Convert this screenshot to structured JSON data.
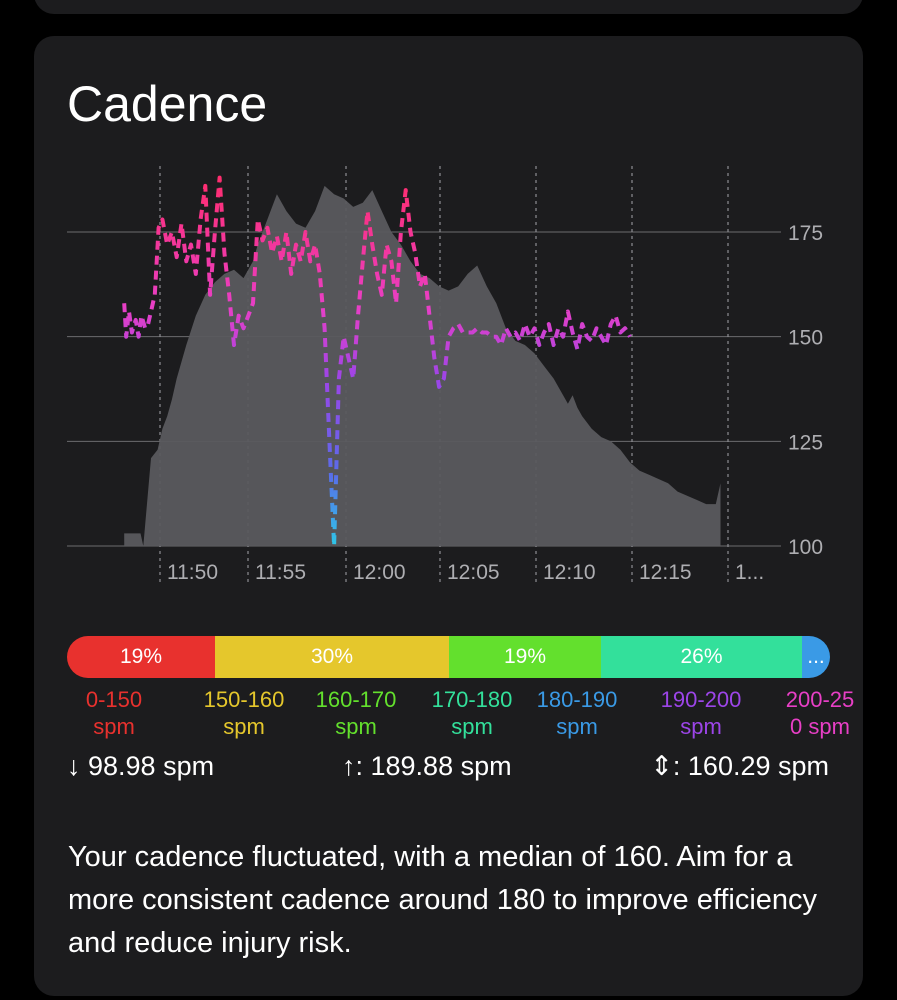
{
  "card": {
    "title": "Cadence",
    "summary": "Your cadence fluctuated, with a median of 160. Aim for a more consistent cadence around 180 to improve efficiency and reduce injury risk."
  },
  "colors": {
    "background": "#000000",
    "card": "#1c1c1e",
    "area": "#5a5a5e",
    "grid": "#6b6b6e",
    "axis_text": "#aeaeb2"
  },
  "chart_data": {
    "type": "area",
    "y_tick_labels": [
      "175",
      "150",
      "125",
      "100"
    ],
    "y_ticks": [
      175,
      150,
      125,
      100
    ],
    "ylim": [
      100,
      190
    ],
    "x_tick_labels": [
      "11:50",
      "11:55",
      "12:00",
      "12:05",
      "12:10",
      "12:15",
      "1..."
    ],
    "grid": "horizontal",
    "series": [
      {
        "type": "area",
        "color": "#5a5a5e",
        "x": [
          11.6,
          11.7,
          11.77,
          11.8,
          11.88,
          11.95,
          12.0,
          12.05,
          12.1,
          12.15,
          12.25,
          12.35,
          12.45,
          12.55,
          12.65,
          12.75,
          12.85,
          12.95,
          13.0,
          13.1,
          13.2,
          13.3,
          13.4,
          13.5,
          13.6,
          13.7,
          13.8,
          13.9,
          14.0,
          14.1,
          14.2,
          14.3,
          14.4,
          14.5,
          14.6,
          14.7,
          14.8,
          14.9,
          15.0,
          15.1,
          15.2,
          15.3,
          15.4,
          15.5,
          15.6,
          15.7,
          15.8,
          15.9,
          16.0,
          16.1,
          16.2,
          16.25,
          16.3,
          16.35,
          16.4,
          16.5,
          16.6,
          16.7,
          16.8,
          16.9,
          17.0,
          17.1,
          17.2,
          17.3,
          17.4,
          17.5,
          17.6,
          17.7,
          17.8,
          17.85
        ],
        "values": [
          103,
          103,
          103,
          100,
          121,
          123,
          128,
          131,
          135,
          140,
          148,
          155,
          160,
          163,
          165,
          166,
          164,
          168,
          172,
          178,
          184,
          180,
          177,
          176,
          180,
          186,
          184,
          183,
          181,
          182,
          185,
          180,
          175,
          172,
          168,
          165,
          164,
          162,
          161,
          162,
          165,
          167,
          162,
          158,
          152,
          149,
          148,
          146,
          143,
          140,
          136,
          134,
          136,
          133,
          131,
          128,
          126,
          125,
          123,
          120,
          118,
          117,
          116,
          115,
          113,
          112,
          111,
          110,
          110,
          115
        ]
      },
      {
        "name": "",
        "type": "line",
        "style": "dashed",
        "x": [
          11.6,
          11.62,
          11.65,
          11.68,
          11.72,
          11.75,
          11.78,
          11.82,
          11.85,
          11.88,
          11.92,
          11.96,
          12.0,
          12.05,
          12.1,
          12.15,
          12.2,
          12.25,
          12.3,
          12.35,
          12.4,
          12.45,
          12.5,
          12.55,
          12.6,
          12.65,
          12.7,
          12.75,
          12.8,
          12.85,
          12.9,
          12.95,
          13.0,
          13.05,
          13.1,
          13.15,
          13.2,
          13.25,
          13.3,
          13.35,
          13.4,
          13.45,
          13.5,
          13.55,
          13.6,
          13.65,
          13.7,
          13.75,
          13.8,
          13.85,
          13.9,
          13.95,
          14.0,
          14.05,
          14.1,
          14.15,
          14.2,
          14.25,
          14.3,
          14.35,
          14.4,
          14.45,
          14.5,
          14.55,
          14.6,
          14.65,
          14.7,
          14.75,
          14.8,
          14.85,
          14.9,
          14.95,
          15.0,
          15.05,
          15.1,
          15.15,
          15.2,
          15.25,
          15.3,
          15.35,
          15.4,
          15.45,
          15.5,
          15.55,
          15.6,
          15.65,
          15.7,
          15.75,
          15.8,
          15.85,
          15.9,
          15.95,
          16.0,
          16.05,
          16.1,
          16.15,
          16.2,
          16.25,
          16.3,
          16.35,
          16.4,
          16.45,
          16.5,
          16.55,
          16.6,
          16.65,
          16.7,
          16.75,
          16.8,
          16.85,
          16.9
        ],
        "values": [
          158,
          150,
          156,
          151,
          154,
          150,
          155,
          152,
          153,
          156,
          160,
          176,
          178,
          172,
          175,
          169,
          177,
          168,
          172,
          165,
          178,
          186,
          160,
          175,
          188,
          170,
          160,
          148,
          155,
          152,
          155,
          158,
          178,
          173,
          176,
          170,
          174,
          168,
          175,
          165,
          172,
          168,
          175,
          168,
          172,
          165,
          152,
          125,
          100,
          140,
          150,
          145,
          140,
          155,
          168,
          180,
          172,
          165,
          160,
          172,
          168,
          158,
          175,
          185,
          175,
          170,
          162,
          165,
          155,
          145,
          138,
          140,
          150,
          152,
          153,
          151,
          151,
          151,
          152,
          151,
          151,
          150,
          150,
          148,
          152,
          150,
          151,
          149,
          153,
          150,
          152,
          148,
          151,
          153,
          148,
          152,
          150,
          156,
          151,
          147,
          153,
          150,
          149,
          152,
          150,
          148,
          153,
          155,
          151,
          152,
          150
        ]
      }
    ]
  },
  "zones": [
    {
      "percent": "19%",
      "color": "#e8312e"
    },
    {
      "percent": "30%",
      "color": "#e5c72c"
    },
    {
      "percent": "19%",
      "color": "#63e02d"
    },
    {
      "percent": "26%",
      "color": "#33e09b"
    },
    {
      "percent": "...",
      "color": "#3a9ae6"
    }
  ],
  "zone_labels": [
    {
      "range": "0-150",
      "unit": "spm",
      "color": "#e8312e"
    },
    {
      "range": "150-160",
      "unit": "spm",
      "color": "#e5c72c"
    },
    {
      "range": "160-170",
      "unit": "spm",
      "color": "#63e02d"
    },
    {
      "range": "170-180",
      "unit": "spm",
      "color": "#33e09b"
    },
    {
      "range": "180-190",
      "unit": "spm",
      "color": "#3a9ae6"
    },
    {
      "range": "190-200",
      "unit": "spm",
      "color": "#9c45e8"
    },
    {
      "range": "200-25",
      "unit": "0 spm",
      "color": "#e83fc6"
    }
  ],
  "stats": {
    "min": "↓ 98.98 spm",
    "max": "↑: 189.88 spm",
    "avg": "⇕: 160.29 spm"
  }
}
